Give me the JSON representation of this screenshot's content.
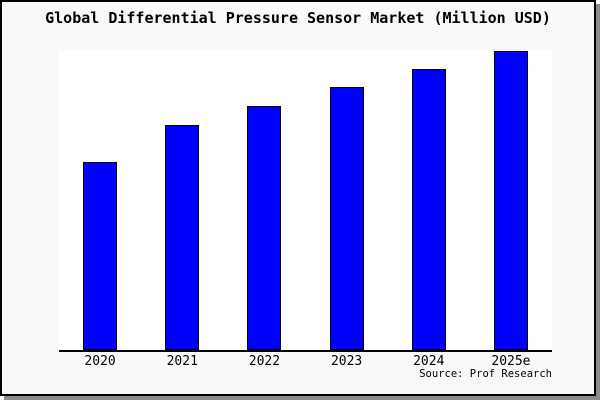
{
  "frame": {
    "background": "#f9f9f9",
    "plot_background": "#ffffff",
    "border_color": "#000000",
    "shadow_color": "#8c8c8c"
  },
  "chart_data": {
    "type": "bar",
    "title": "Global Differential Pressure Sensor Market (Million USD)",
    "categories": [
      "2020",
      "2021",
      "2022",
      "2023",
      "2024",
      "2025e"
    ],
    "values": [
      188,
      225,
      244,
      263,
      281,
      299
    ],
    "ylim": [
      0,
      300
    ],
    "xlabel": "",
    "ylabel": "",
    "y_axis_visible": false,
    "grid": false,
    "legend": false,
    "bar_color": "#0000ff",
    "bar_border_color": "#000000",
    "axis_color": "#000000"
  },
  "footer": {
    "source_label": "Source: Prof Research"
  }
}
